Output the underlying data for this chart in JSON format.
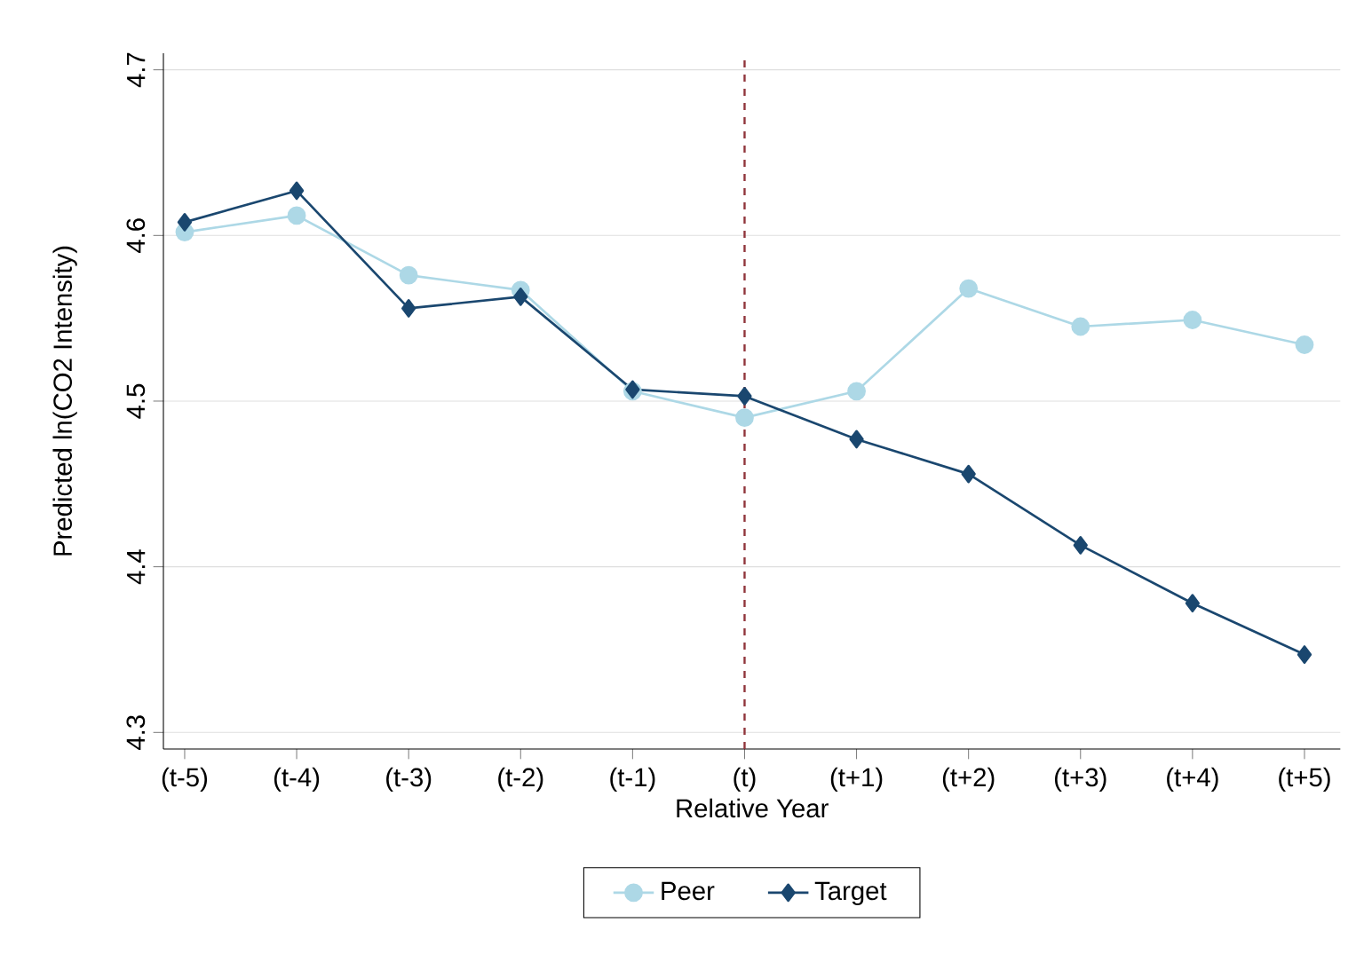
{
  "chart_data": {
    "type": "line",
    "xlabel": "Relative Year",
    "ylabel": "Predicted ln(CO2 Intensity)",
    "categories": [
      "(t-5)",
      "(t-4)",
      "(t-3)",
      "(t-2)",
      "(t-1)",
      "(t)",
      "(t+1)",
      "(t+2)",
      "(t+3)",
      "(t+4)",
      "(t+5)"
    ],
    "series": [
      {
        "name": "Peer",
        "color": "#add8e6",
        "marker": "circle",
        "values": [
          4.602,
          4.612,
          4.576,
          4.567,
          4.506,
          4.49,
          4.506,
          4.568,
          4.545,
          4.549,
          4.534
        ]
      },
      {
        "name": "Target",
        "color": "#1a476f",
        "marker": "diamond",
        "values": [
          4.608,
          4.627,
          4.556,
          4.563,
          4.507,
          4.503,
          4.477,
          4.456,
          4.413,
          4.378,
          4.347
        ]
      }
    ],
    "ylim": [
      4.29,
      4.71
    ],
    "yticks": [
      4.3,
      4.4,
      4.5,
      4.6,
      4.7
    ],
    "grid": "y",
    "legend": "bottom",
    "ref_lines": [
      {
        "axis": "x",
        "value": "(t)",
        "color": "#90353b",
        "line_style": "dashed"
      }
    ]
  }
}
